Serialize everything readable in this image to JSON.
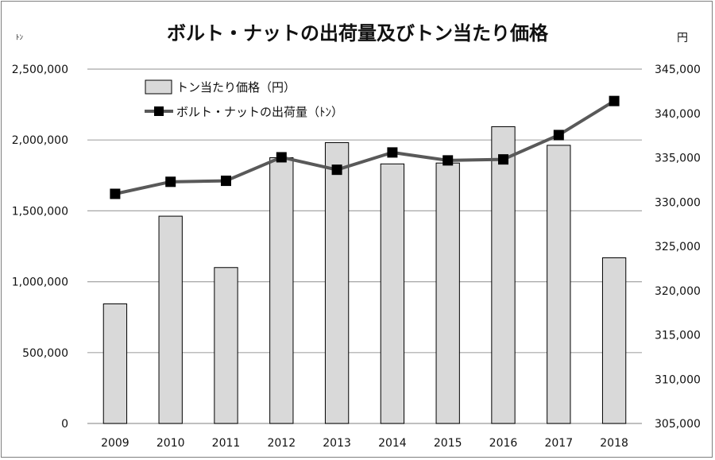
{
  "chart_data": {
    "type": "bar",
    "title": "ボルト・ナットの出荷量及びトン当たり価格",
    "left_unit": "ﾄﾝ",
    "right_unit": "円",
    "categories": [
      "2009",
      "2010",
      "2011",
      "2012",
      "2013",
      "2014",
      "2015",
      "2016",
      "2017",
      "2018"
    ],
    "y_left": {
      "min": 0,
      "max": 2500000,
      "ticks": [
        "0",
        "500,000",
        "1,000,000",
        "1,500,000",
        "2,000,000",
        "2,500,000"
      ]
    },
    "y_right": {
      "min": 305000,
      "max": 345000,
      "ticks": [
        "305,000",
        "310,000",
        "315,000",
        "320,000",
        "325,000",
        "330,000",
        "335,000",
        "340,000",
        "345,000"
      ]
    },
    "series": [
      {
        "name": "ボルト・ナットの出荷量（ﾄﾝ）",
        "type": "line",
        "axis": "left",
        "color": "#595959",
        "values": [
          1620000,
          1705000,
          1712000,
          1878000,
          1790000,
          1912000,
          1856000,
          1863000,
          2035000,
          2275000
        ]
      },
      {
        "name": "トン当たり価格（円）",
        "type": "bar",
        "axis": "right",
        "color": "#d9d9d9",
        "values": [
          318500,
          328400,
          322600,
          335000,
          336700,
          334300,
          334400,
          338500,
          336400,
          323700
        ]
      }
    ],
    "grid": true,
    "legend": "top-left"
  }
}
